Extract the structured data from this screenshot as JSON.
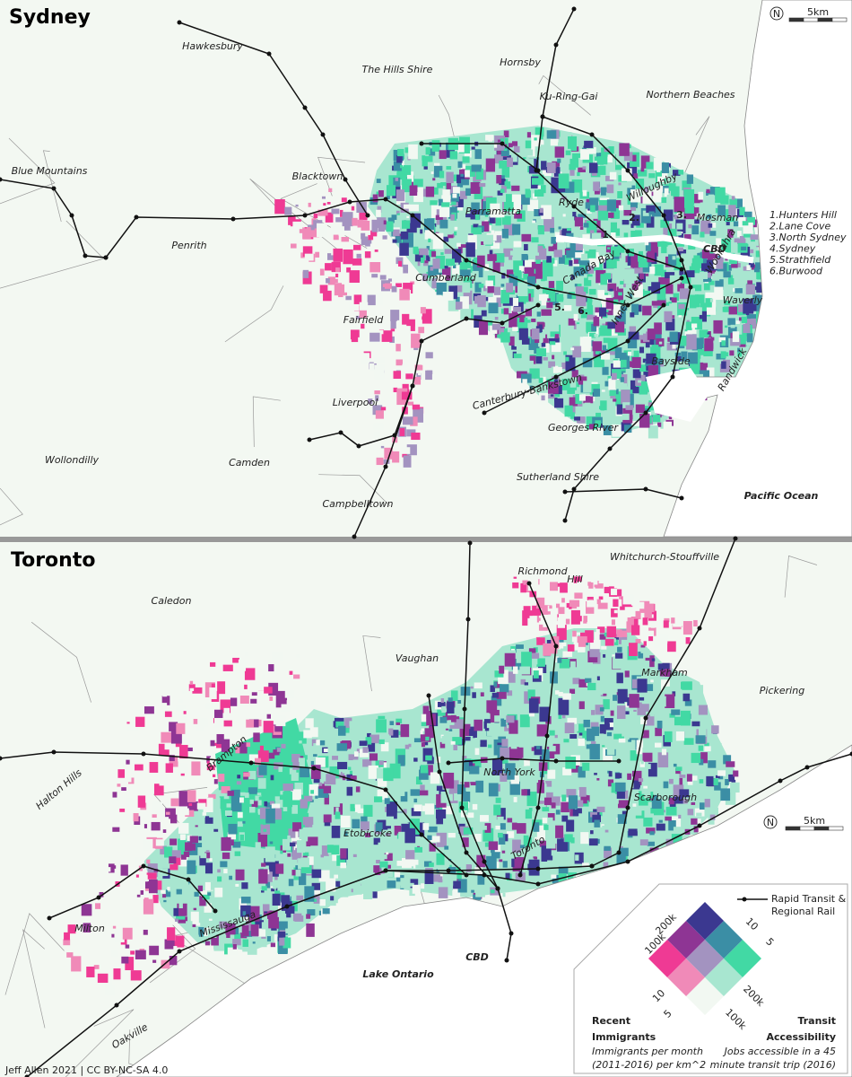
{
  "sydney": {
    "title": "Sydney",
    "scale": "5km",
    "north": "N",
    "places": [
      "Hawkesbury",
      "The Hills Shire",
      "Hornsby",
      "Ku-Ring-Gai",
      "Northern Beaches",
      "Blue Mountains",
      "Blacktown",
      "Parramatta",
      "Ryde",
      "Willoughby",
      "Mosman",
      "Penrith",
      "Cumberland",
      "Canada Bay",
      "Inner West",
      "Woollahra",
      "Waverly",
      "Fairfield",
      "Bayside",
      "Randwick",
      "Canterbury-Bankstown",
      "Liverpool",
      "Georges River",
      "Wollondilly",
      "Camden",
      "Sutherland Shire",
      "Campbelltown"
    ],
    "map_numbers": [
      "1.",
      "2.",
      "3.",
      "5.",
      "6."
    ],
    "numbered_list": [
      "1.Hunters Hill",
      "2.Lane Cove",
      "3.North Sydney",
      "4.Sydney",
      "5.Strathfield",
      "6.Burwood"
    ],
    "cbd": "CBD",
    "ocean": "Pacific Ocean"
  },
  "toronto": {
    "title": "Toronto",
    "scale": "5km",
    "north": "N",
    "places": [
      "Richmond",
      "Hill",
      "Whitchurch-Stouffville",
      "Caledon",
      "Vaughan",
      "Markham",
      "Pickering",
      "Brampton",
      "Halton Hills",
      "North York",
      "Scarborough",
      "Etobicoke",
      "Toronto",
      "Mississauga",
      "Milton",
      "Oakville"
    ],
    "cbd": "CBD",
    "lake": "Lake Ontario"
  },
  "legend": {
    "rail": [
      "Rapid Transit &",
      "Regional Rail"
    ],
    "immigrant_ticks": [
      "200k",
      "100k",
      "10",
      "5"
    ],
    "transit_ticks": [
      "10",
      "5",
      "200k",
      "100k"
    ],
    "immigrants_title": [
      "Recent",
      "Immigrants"
    ],
    "immigrants_note": [
      "Immigrants per month",
      "(2011-2016) per km^2"
    ],
    "transit_title": [
      "Transit",
      "Accessibility"
    ],
    "transit_note": [
      "Jobs accessible in a 45",
      "minute transit trip (2016)"
    ],
    "colors": [
      [
        "#f2f8f2",
        "#a8e6d0",
        "#42d9a4"
      ],
      [
        "#f08ab8",
        "#a393c0",
        "#3b8ea5"
      ],
      [
        "#ef3a94",
        "#8e3594",
        "#3b3890"
      ]
    ]
  },
  "credit": "Jeff Allen 2021  |  CC BY-NC-SA 4.0"
}
